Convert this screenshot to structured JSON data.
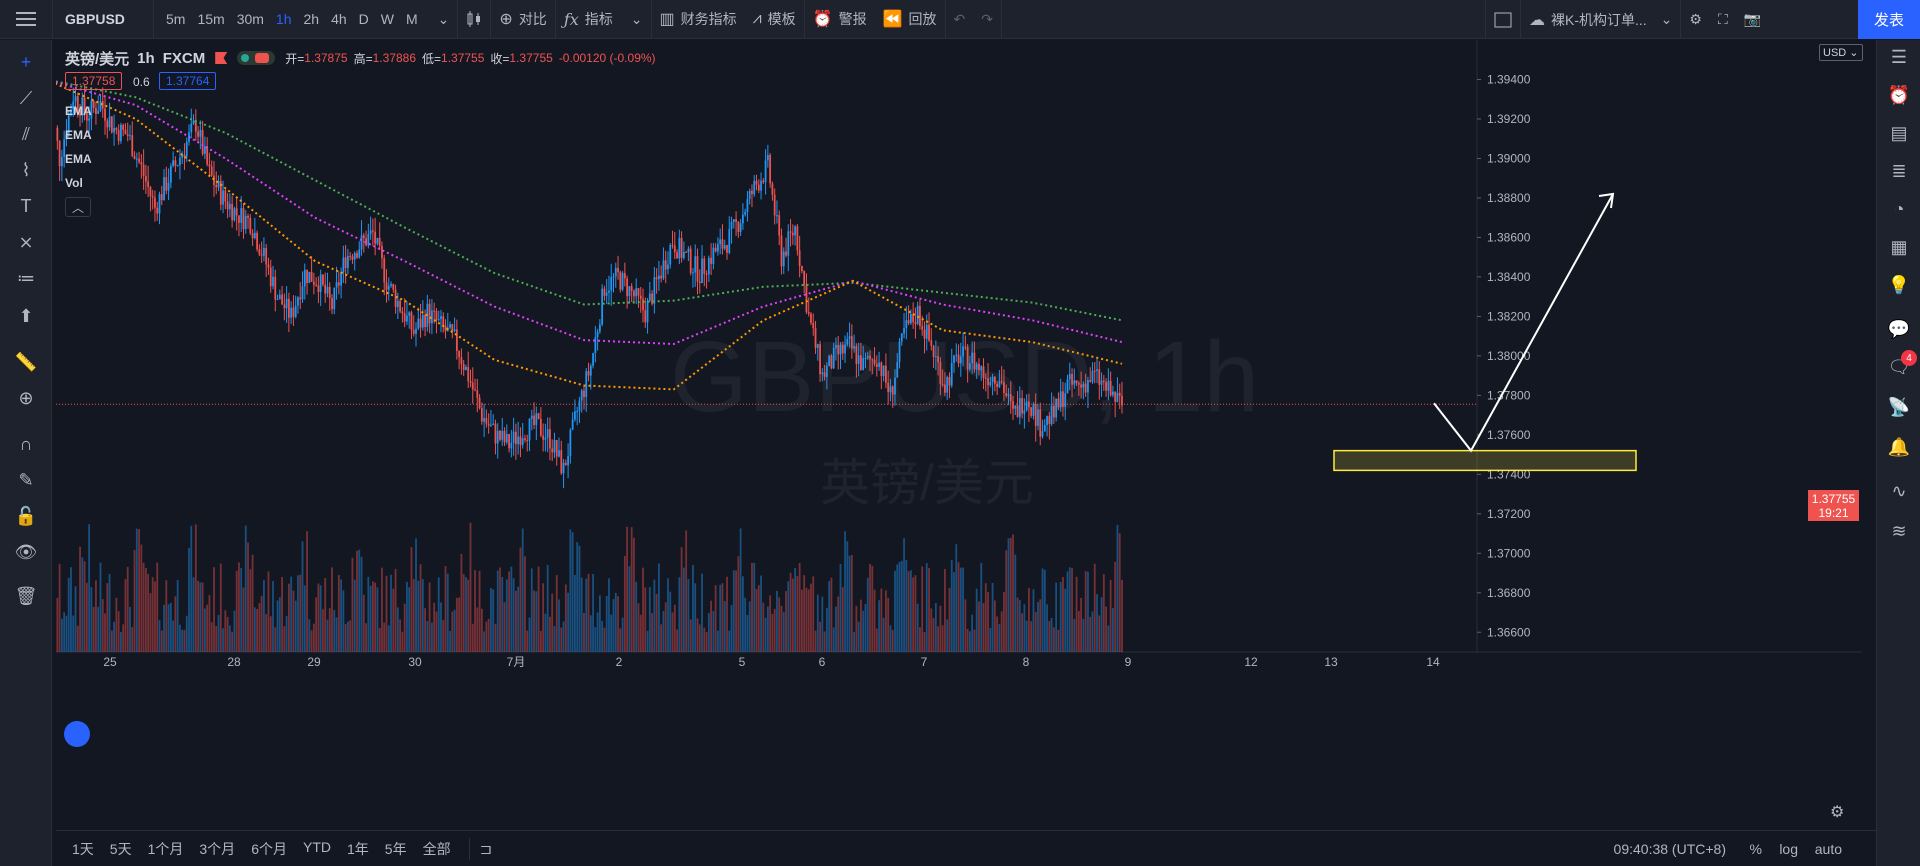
{
  "toolbar": {
    "symbol": "GBPUSD",
    "timeframes": [
      "5m",
      "15m",
      "30m",
      "1h",
      "2h",
      "4h",
      "D",
      "W",
      "M"
    ],
    "active_timeframe": "1h",
    "compare": "对比",
    "indicators": "指标",
    "financials": "财务指标",
    "templates": "模板",
    "alerts": "警报",
    "replay": "回放",
    "layout_name": "裸K-机构订单...",
    "publish": "发表"
  },
  "legend": {
    "title": "英镑/美元",
    "interval": "1h",
    "source": "FXCM",
    "open_label": "开=",
    "open": "1.37875",
    "high_label": "高=",
    "high": "1.37886",
    "low_label": "低=",
    "low": "1.37755",
    "close_label": "收=",
    "close": "1.37755",
    "change": "-0.00120 (-0.09%)",
    "bid": "1.37758",
    "spread": "0.6",
    "ask": "1.37764",
    "indicators": [
      "EMA",
      "EMA",
      "EMA",
      "Vol"
    ]
  },
  "watermark": {
    "line1": "GBPUSD, 1h",
    "line2": "英镑/美元"
  },
  "price_axis": {
    "currency": "USD",
    "current_price": "1.37755",
    "countdown": "19:21"
  },
  "bottom": {
    "ranges": [
      "1天",
      "5天",
      "1个月",
      "3个月",
      "6个月",
      "YTD",
      "1年",
      "5年",
      "全部"
    ],
    "clock": "09:40:38 (UTC+8)",
    "options": [
      "%",
      "log",
      "auto"
    ]
  },
  "right_badge": "4",
  "colors": {
    "up": "#2196f3",
    "down": "#ef5350",
    "ema_fast": "#ff9800",
    "ema_mid": "#e040fb",
    "ema_slow": "#4caf50",
    "zone": "#ffeb3b",
    "accent": "#2962ff"
  },
  "chart_data": {
    "type": "candlestick",
    "y_ticks": [
      "1.39400",
      "1.39200",
      "1.39000",
      "1.38800",
      "1.38600",
      "1.38400",
      "1.38200",
      "1.38000",
      "1.37800",
      "1.37600",
      "1.37400",
      "1.37200",
      "1.37000",
      "1.36800",
      "1.36600"
    ],
    "x_ticks": [
      "25",
      "28",
      "29",
      "30",
      "7月",
      "2",
      "5",
      "6",
      "7",
      "8",
      "9",
      "12",
      "13",
      "14"
    ],
    "price_path": [
      [
        0,
        1.3941
      ],
      [
        6,
        1.39
      ],
      [
        12,
        1.3932
      ],
      [
        18,
        1.3922
      ],
      [
        24,
        1.3928
      ],
      [
        30,
        1.3915
      ],
      [
        36,
        1.3912
      ],
      [
        42,
        1.3895
      ],
      [
        48,
        1.3875
      ],
      [
        54,
        1.389
      ],
      [
        60,
        1.3903
      ],
      [
        66,
        1.3918
      ],
      [
        72,
        1.3892
      ],
      [
        78,
        1.388
      ],
      [
        84,
        1.3872
      ],
      [
        90,
        1.3868
      ],
      [
        96,
        1.385
      ],
      [
        102,
        1.383
      ],
      [
        108,
        1.382
      ],
      [
        114,
        1.3842
      ],
      [
        120,
        1.3838
      ],
      [
        126,
        1.3825
      ],
      [
        132,
        1.385
      ],
      [
        138,
        1.3856
      ],
      [
        144,
        1.3862
      ],
      [
        150,
        1.3838
      ],
      [
        156,
        1.3825
      ],
      [
        162,
        1.3812
      ],
      [
        168,
        1.3822
      ],
      [
        174,
        1.3815
      ],
      [
        180,
        1.3808
      ],
      [
        186,
        1.379
      ],
      [
        192,
        1.377
      ],
      [
        198,
        1.376
      ],
      [
        204,
        1.3755
      ],
      [
        210,
        1.3762
      ],
      [
        216,
        1.3765
      ],
      [
        222,
        1.3758
      ],
      [
        228,
        1.3742
      ],
      [
        234,
        1.3772
      ],
      [
        240,
        1.3795
      ],
      [
        246,
        1.3835
      ],
      [
        252,
        1.384
      ],
      [
        258,
        1.3832
      ],
      [
        264,
        1.3822
      ],
      [
        270,
        1.384
      ],
      [
        276,
        1.3858
      ],
      [
        282,
        1.385
      ],
      [
        288,
        1.3842
      ],
      [
        294,
        1.3852
      ],
      [
        300,
        1.3858
      ],
      [
        306,
        1.387
      ],
      [
        312,
        1.3885
      ],
      [
        318,
        1.3896
      ],
      [
        324,
        1.385
      ],
      [
        330,
        1.3865
      ],
      [
        336,
        1.382
      ],
      [
        342,
        1.379
      ],
      [
        348,
        1.38
      ],
      [
        354,
        1.3805
      ],
      [
        360,
        1.3795
      ],
      [
        366,
        1.38
      ],
      [
        372,
        1.378
      ],
      [
        378,
        1.3812
      ],
      [
        384,
        1.3822
      ],
      [
        390,
        1.3805
      ],
      [
        396,
        1.3785
      ],
      [
        402,
        1.38
      ],
      [
        408,
        1.3798
      ],
      [
        414,
        1.379
      ],
      [
        420,
        1.379
      ],
      [
        426,
        1.377
      ],
      [
        432,
        1.378
      ],
      [
        438,
        1.3765
      ],
      [
        444,
        1.377
      ],
      [
        450,
        1.3785
      ],
      [
        456,
        1.3785
      ],
      [
        462,
        1.379
      ],
      [
        468,
        1.3782
      ],
      [
        474,
        1.3775
      ]
    ],
    "ema_fast": [
      1.394,
      1.392,
      1.3885,
      1.3848,
      1.3828,
      1.3798,
      1.3785,
      1.3783,
      1.3818,
      1.3838,
      1.3813,
      1.3807,
      1.3796
    ],
    "ema_mid": [
      1.394,
      1.3927,
      1.39,
      1.387,
      1.3848,
      1.3825,
      1.3808,
      1.3806,
      1.3825,
      1.3838,
      1.3826,
      1.3818,
      1.3807
    ],
    "ema_slow": [
      1.394,
      1.3931,
      1.3913,
      1.3889,
      1.3865,
      1.3842,
      1.3826,
      1.3828,
      1.3835,
      1.3837,
      1.3832,
      1.3827,
      1.3818
    ],
    "demand_zone": [
      1.3742,
      1.3752
    ],
    "ylim": [
      1.365,
      1.396
    ],
    "projection": [
      [
        1.3776
      ],
      [
        1.3752
      ],
      [
        1.3882
      ]
    ]
  }
}
